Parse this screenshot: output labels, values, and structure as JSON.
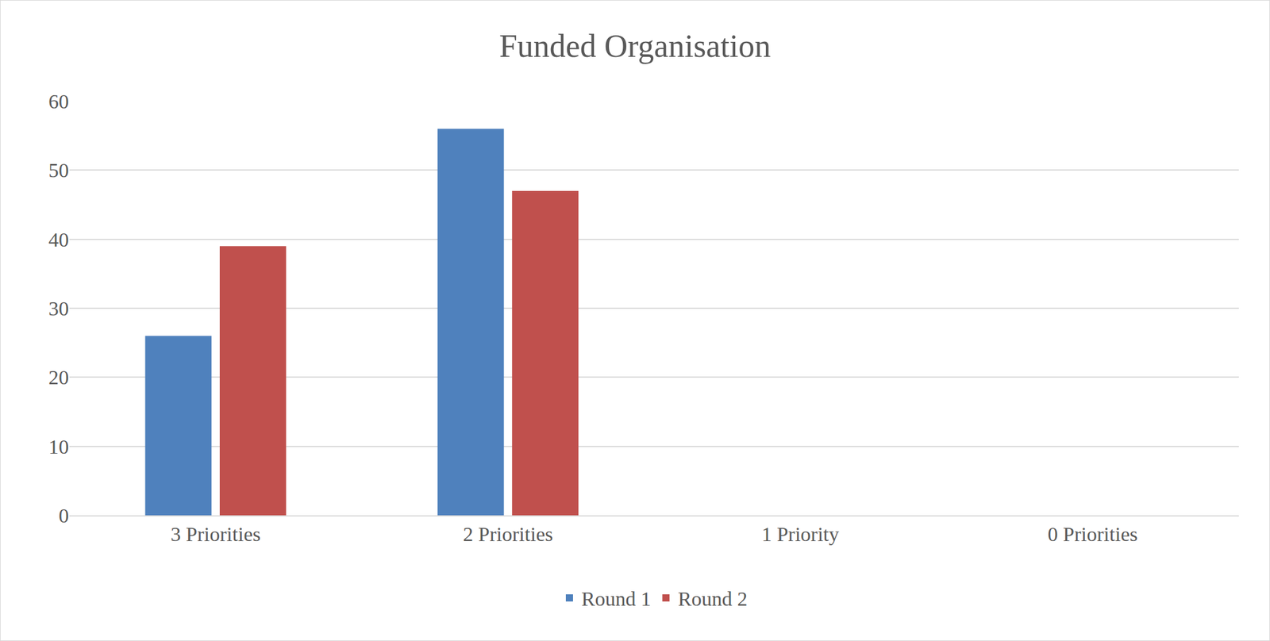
{
  "chart_data": {
    "type": "bar",
    "title": "Funded Organisation",
    "categories": [
      "3 Priorities",
      "2 Priorities",
      "1 Priority",
      "0 Priorities"
    ],
    "series": [
      {
        "name": "Round 1",
        "color": "#4f81bd",
        "values": [
          26,
          56,
          0,
          0
        ]
      },
      {
        "name": "Round 2",
        "color": "#c0504d",
        "values": [
          39,
          47,
          0,
          0
        ]
      }
    ],
    "ylim": [
      0,
      60
    ],
    "yticks": [
      0,
      10,
      20,
      30,
      40,
      50,
      60
    ],
    "grid": true,
    "legend": "bottom"
  }
}
